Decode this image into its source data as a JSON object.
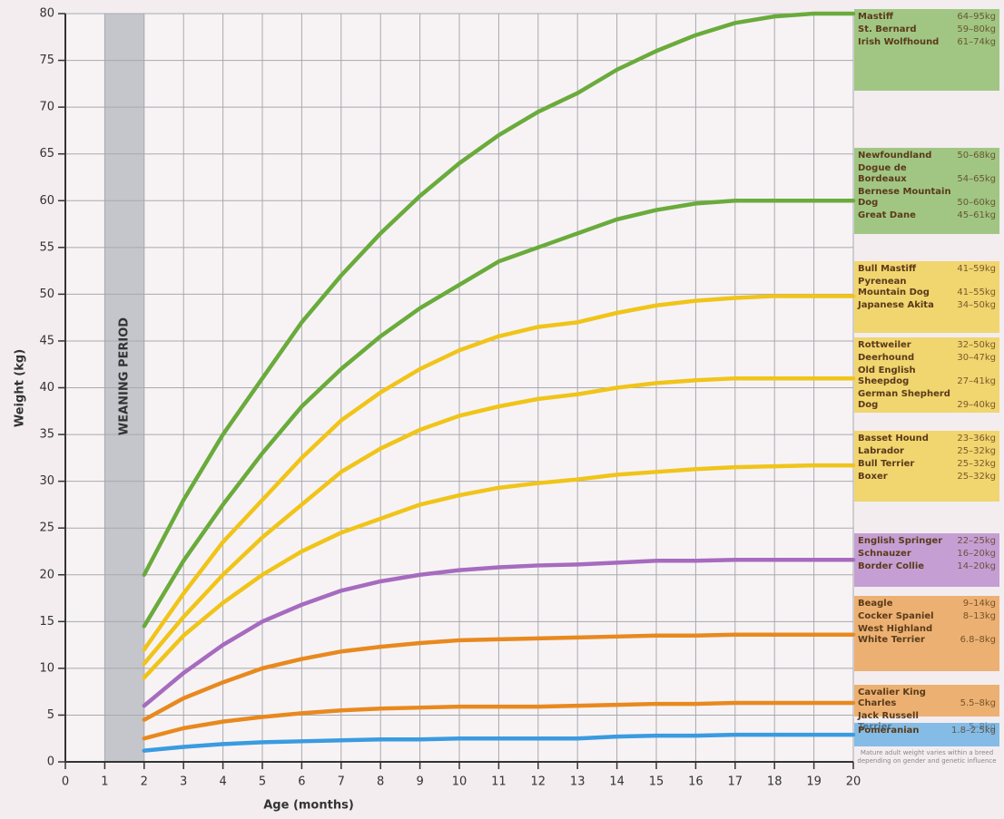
{
  "chart_data": {
    "type": "line",
    "xlabel": "Age (months)",
    "ylabel": "Weight (kg)",
    "band": {
      "from": 1,
      "to": 2,
      "label": "WEANING PERIOD",
      "color": "#c4c6cc"
    },
    "x": [
      2,
      3,
      4,
      5,
      6,
      7,
      8,
      9,
      10,
      11,
      12,
      13,
      14,
      15,
      16,
      17,
      18,
      19,
      20
    ],
    "series": [
      {
        "color": "#6aab3c",
        "values": [
          20,
          28,
          35,
          41,
          47,
          52,
          56.5,
          60.5,
          64,
          67,
          69.5,
          71.5,
          74,
          76,
          77.7,
          79,
          79.7,
          80,
          80
        ],
        "breeds": [
          {
            "name": "Mastiff",
            "range": "64–95kg"
          },
          {
            "name": "St. Bernard",
            "range": "59–80kg"
          },
          {
            "name": "Irish Wolfhound",
            "range": "61–74kg"
          }
        ]
      },
      {
        "color": "#6aab3c",
        "values": [
          14.5,
          21.5,
          27.5,
          33,
          38,
          42,
          45.5,
          48.5,
          51,
          53.5,
          55,
          56.5,
          58,
          59,
          59.7,
          60,
          60,
          60,
          60
        ],
        "breeds": [
          {
            "name": "Newfoundland",
            "range": "50–68kg"
          },
          {
            "name": "Dogue de Bordeaux",
            "range": "54–65kg"
          },
          {
            "name": "Bernese Mountain Dog",
            "range": "50–60kg"
          },
          {
            "name": "Great Dane",
            "range": "45–61kg"
          }
        ]
      },
      {
        "color": "#f0c419",
        "values": [
          12,
          18,
          23.5,
          28,
          32.5,
          36.5,
          39.5,
          42,
          44,
          45.5,
          46.5,
          47,
          48,
          48.8,
          49.3,
          49.6,
          49.8,
          49.8,
          49.8
        ],
        "breeds": [
          {
            "name": "Bull Mastiff",
            "range": "41–59kg"
          },
          {
            "name": "Pyrenean Mountain Dog",
            "range": "41–55kg"
          },
          {
            "name": "Japanese Akita",
            "range": "34–50kg"
          }
        ]
      },
      {
        "color": "#f0c419",
        "values": [
          10.5,
          15.5,
          20,
          24,
          27.5,
          31,
          33.5,
          35.5,
          37,
          38,
          38.8,
          39.3,
          40,
          40.5,
          40.8,
          41,
          41,
          41,
          41
        ],
        "breeds": [
          {
            "name": "Rottweiler",
            "range": "32–50kg"
          },
          {
            "name": "Deerhound",
            "range": "30–47kg"
          },
          {
            "name": "Old English Sheepdog",
            "range": "27–41kg"
          },
          {
            "name": "German Shepherd Dog",
            "range": "29–40kg"
          }
        ]
      },
      {
        "color": "#f0c419",
        "values": [
          9,
          13.5,
          17,
          20,
          22.5,
          24.5,
          26,
          27.5,
          28.5,
          29.3,
          29.8,
          30.2,
          30.7,
          31,
          31.3,
          31.5,
          31.6,
          31.7,
          31.7
        ],
        "breeds": [
          {
            "name": "Basset Hound",
            "range": "23–36kg"
          },
          {
            "name": "Labrador",
            "range": "25–32kg"
          },
          {
            "name": "Bull Terrier",
            "range": "25–32kg"
          },
          {
            "name": "Boxer",
            "range": "25–32kg"
          }
        ]
      },
      {
        "color": "#a66bbf",
        "values": [
          6,
          9.5,
          12.5,
          15,
          16.8,
          18.3,
          19.3,
          20,
          20.5,
          20.8,
          21,
          21.1,
          21.3,
          21.5,
          21.5,
          21.6,
          21.6,
          21.6,
          21.6
        ],
        "breeds": [
          {
            "name": "English Springer",
            "range": "22–25kg"
          },
          {
            "name": "Schnauzer",
            "range": "16–20kg"
          },
          {
            "name": "Border Collie",
            "range": "14–20kg"
          }
        ]
      },
      {
        "color": "#e8891e",
        "values": [
          4.5,
          6.8,
          8.5,
          10,
          11,
          11.8,
          12.3,
          12.7,
          13,
          13.1,
          13.2,
          13.3,
          13.4,
          13.5,
          13.5,
          13.6,
          13.6,
          13.6,
          13.6
        ],
        "breeds": [
          {
            "name": "Beagle",
            "range": "9–14kg"
          },
          {
            "name": "Cocker Spaniel",
            "range": "8–13kg"
          },
          {
            "name": "West Highland White Terrier",
            "range": "6.8–8kg"
          }
        ]
      },
      {
        "color": "#e8891e",
        "values": [
          2.5,
          3.6,
          4.3,
          4.8,
          5.2,
          5.5,
          5.7,
          5.8,
          5.9,
          5.9,
          5.9,
          6,
          6.1,
          6.2,
          6.2,
          6.3,
          6.3,
          6.3,
          6.3
        ],
        "breeds": [
          {
            "name": "Cavalier King Charles",
            "range": "5.5–8kg"
          },
          {
            "name": "Jack Russell Terrier",
            "range": "5–8kg"
          }
        ]
      },
      {
        "color": "#3a9be0",
        "values": [
          1.2,
          1.6,
          1.9,
          2.1,
          2.2,
          2.3,
          2.4,
          2.4,
          2.5,
          2.5,
          2.5,
          2.5,
          2.7,
          2.8,
          2.8,
          2.9,
          2.9,
          2.9,
          2.9
        ],
        "breeds": [
          {
            "name": "Pomeranian",
            "range": "1.8–2.5kg"
          }
        ]
      }
    ],
    "footnote": "Mature adult weight varies within a breed depending on gender and genetic influence",
    "xlim": [
      0,
      20
    ],
    "xticks": [
      0,
      1,
      2,
      3,
      4,
      5,
      6,
      7,
      8,
      9,
      10,
      11,
      12,
      13,
      14,
      15,
      16,
      17,
      18,
      19,
      20
    ],
    "ylim": [
      0,
      80
    ],
    "yticks": [
      0,
      5,
      10,
      15,
      20,
      25,
      30,
      35,
      40,
      45,
      50,
      55,
      60,
      65,
      70,
      75,
      80
    ],
    "grid": true,
    "legend_position": "right"
  }
}
